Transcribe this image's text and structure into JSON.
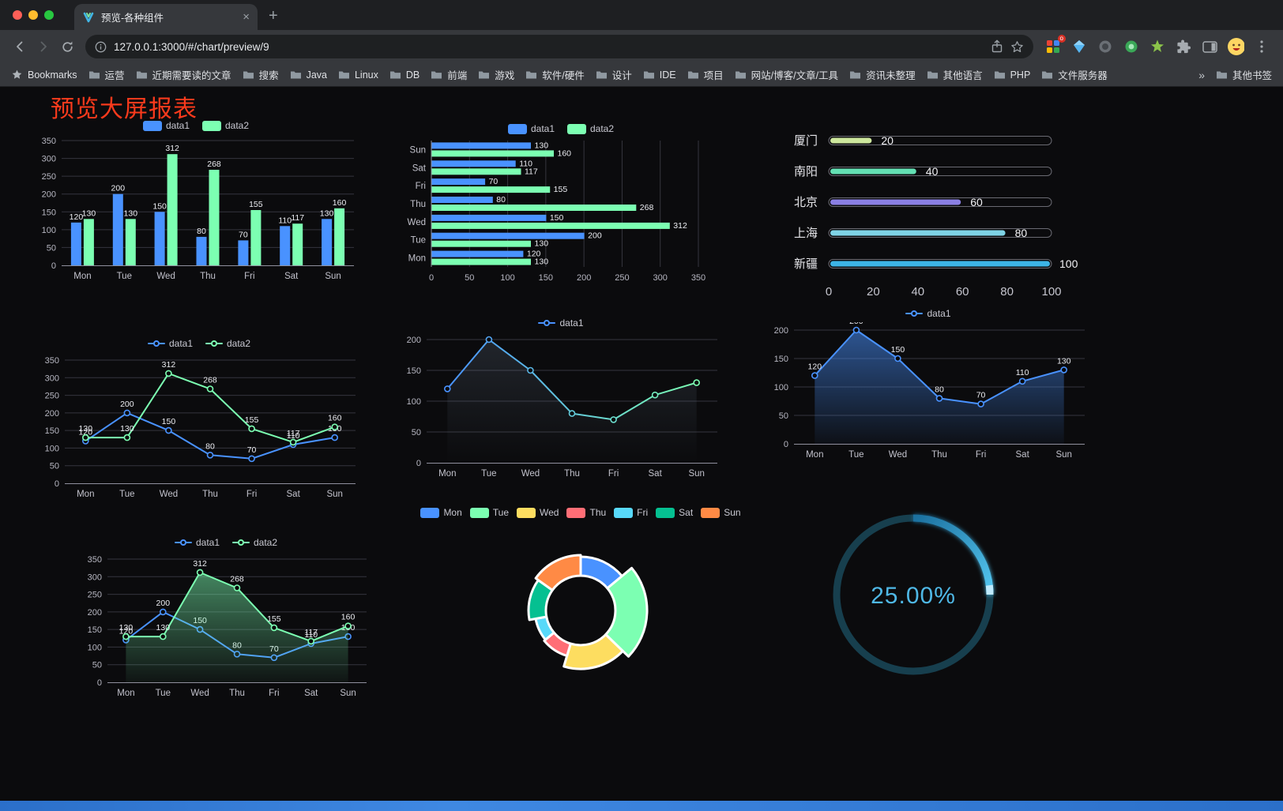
{
  "browser": {
    "tab_title": "预览-各种组件",
    "tab_close": "×",
    "new_tab": "+",
    "url": "127.0.0.1:3000/#/chart/preview/9",
    "ext_badge": "o",
    "bookmarks_bar": {
      "first_label": "Bookmarks",
      "folders": [
        "运营",
        "近期需要读的文章",
        "搜索",
        "Java",
        "Linux",
        "DB",
        "前端",
        "游戏",
        "软件/硬件",
        "设计",
        "IDE",
        "项目",
        "网站/博客/文章/工具",
        "资讯未整理",
        "其他语言",
        "PHP",
        "文件服务器"
      ],
      "overflow": "»",
      "other_label": "其他书签"
    }
  },
  "page": {
    "title": "预览大屏报表",
    "title_color": "#fa3a1c"
  },
  "chart_data": [
    {
      "type": "bar",
      "orientation": "vertical",
      "categories": [
        "Mon",
        "Tue",
        "Wed",
        "Thu",
        "Fri",
        "Sat",
        "Sun"
      ],
      "series": [
        {
          "name": "data1",
          "color": "#4992ff",
          "values": [
            120,
            200,
            150,
            80,
            70,
            110,
            130
          ]
        },
        {
          "name": "data2",
          "color": "#7cffb2",
          "values": [
            130,
            130,
            312,
            268,
            155,
            117,
            160
          ]
        }
      ],
      "ylim": [
        0,
        350
      ],
      "yticks": [
        0,
        50,
        100,
        150,
        200,
        250,
        300,
        350
      ],
      "value_labels": true,
      "grid": true,
      "legend_position": "top"
    },
    {
      "type": "bar",
      "orientation": "horizontal",
      "categories": [
        "Mon",
        "Tue",
        "Wed",
        "Thu",
        "Fri",
        "Sat",
        "Sun"
      ],
      "series": [
        {
          "name": "data1",
          "color": "#4992ff",
          "values": [
            120,
            200,
            150,
            80,
            70,
            110,
            130
          ]
        },
        {
          "name": "data2",
          "color": "#7cffb2",
          "values": [
            130,
            130,
            312,
            268,
            155,
            117,
            160
          ]
        }
      ],
      "xlim": [
        0,
        350
      ],
      "xticks": [
        0,
        50,
        100,
        150,
        200,
        250,
        300,
        350
      ],
      "value_labels": true,
      "grid": true,
      "legend_position": "top"
    },
    {
      "type": "capsule",
      "rows": [
        {
          "label": "厦门",
          "value": 20,
          "color": "#cde79d"
        },
        {
          "label": "南阳",
          "value": 40,
          "color": "#63e0b3"
        },
        {
          "label": "北京",
          "value": 60,
          "color": "#8a7fe3"
        },
        {
          "label": "上海",
          "value": 80,
          "color": "#7fd4e6"
        },
        {
          "label": "新疆",
          "value": 100,
          "color": "#3cb4e6"
        }
      ],
      "xlim": [
        0,
        100
      ],
      "xticks": [
        0,
        20,
        40,
        60,
        80,
        100
      ]
    },
    {
      "type": "line",
      "categories": [
        "Mon",
        "Tue",
        "Wed",
        "Thu",
        "Fri",
        "Sat",
        "Sun"
      ],
      "series": [
        {
          "name": "data1",
          "color": "#4992ff",
          "values": [
            120,
            200,
            150,
            80,
            70,
            110,
            130
          ],
          "labels": true
        },
        {
          "name": "data2",
          "color": "#7cffb2",
          "values": [
            130,
            130,
            312,
            268,
            155,
            117,
            160
          ],
          "labels": true
        }
      ],
      "ylim": [
        0,
        350
      ],
      "yticks": [
        0,
        50,
        100,
        150,
        200,
        250,
        300,
        350
      ],
      "grid": true,
      "legend_position": "top"
    },
    {
      "type": "line",
      "categories": [
        "Mon",
        "Tue",
        "Wed",
        "Thu",
        "Fri",
        "Sat",
        "Sun"
      ],
      "series": [
        {
          "name": "data1",
          "color": "#4992ff",
          "color_end": "#7cffb2",
          "gradient_line": true,
          "area": "faint",
          "values": [
            120,
            200,
            150,
            80,
            70,
            110,
            130
          ],
          "labels": false
        }
      ],
      "ylim": [
        0,
        200
      ],
      "yticks": [
        0,
        50,
        100,
        150,
        200
      ],
      "grid": true,
      "legend_position": "top"
    },
    {
      "type": "line",
      "categories": [
        "Mon",
        "Tue",
        "Wed",
        "Thu",
        "Fri",
        "Sat",
        "Sun"
      ],
      "series": [
        {
          "name": "data1",
          "color": "#4992ff",
          "area": "blue",
          "values": [
            120,
            200,
            150,
            80,
            70,
            110,
            130
          ],
          "labels": true
        }
      ],
      "ylim": [
        0,
        200
      ],
      "yticks": [
        0,
        50,
        100,
        150,
        200
      ],
      "grid": true,
      "legend_position": "top"
    },
    {
      "type": "line",
      "categories": [
        "Mon",
        "Tue",
        "Wed",
        "Thu",
        "Fri",
        "Sat",
        "Sun"
      ],
      "series": [
        {
          "name": "data1",
          "color": "#4992ff",
          "values": [
            120,
            200,
            150,
            80,
            70,
            110,
            130
          ],
          "labels": true
        },
        {
          "name": "data2",
          "color": "#7cffb2",
          "area": "green",
          "values": [
            130,
            130,
            312,
            268,
            155,
            117,
            160
          ],
          "labels": true
        }
      ],
      "ylim": [
        0,
        350
      ],
      "yticks": [
        0,
        50,
        100,
        150,
        200,
        250,
        300,
        350
      ],
      "grid": true,
      "legend_position": "top"
    },
    {
      "type": "pie",
      "subtype": "rose-donut",
      "slices": [
        {
          "label": "Mon",
          "value": 120,
          "color": "#4992ff"
        },
        {
          "label": "Tue",
          "value": 200,
          "color": "#7cffb2"
        },
        {
          "label": "Wed",
          "value": 150,
          "color": "#fddd60"
        },
        {
          "label": "Thu",
          "value": 80,
          "color": "#ff6e76"
        },
        {
          "label": "Fri",
          "value": 70,
          "color": "#58d9f9"
        },
        {
          "label": "Sat",
          "value": 110,
          "color": "#05c091"
        },
        {
          "label": "Sun",
          "value": 130,
          "color": "#ff8a45"
        }
      ],
      "legend_position": "top"
    },
    {
      "type": "gauge",
      "value": 25,
      "display": "25.00%",
      "color_start": "#1b6f9e",
      "color_end": "#55c8f2",
      "tip_color": "#bfeafc",
      "track_color": "#173f4e",
      "text_color": "#4fb8e6"
    }
  ]
}
